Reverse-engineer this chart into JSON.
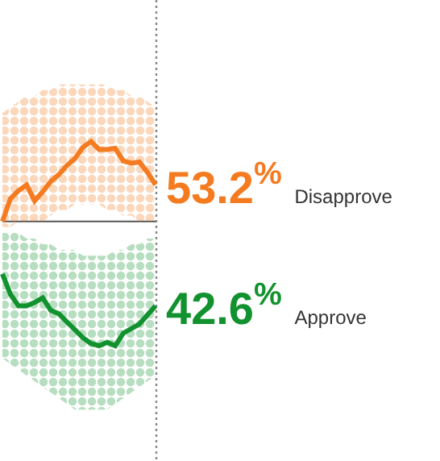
{
  "chart_data": {
    "type": "line",
    "ylim": [
      29.0,
      69.4
    ],
    "legend": false,
    "marker": "none",
    "line_style": "solid",
    "categories": [
      null,
      null,
      null,
      null,
      null,
      null,
      null,
      null,
      null,
      null,
      null,
      null,
      null,
      null,
      null,
      null,
      null,
      null,
      null,
      null
    ],
    "ref_lines": [
      {
        "axis": "y",
        "value": 50,
        "color": "#555555"
      }
    ],
    "series": [
      {
        "name": "Disapprove",
        "color": "#f47b20",
        "values": [
          50.0,
          52.0,
          52.7,
          53.2,
          51.8,
          52.6,
          53.5,
          54.1,
          54.9,
          55.5,
          56.5,
          57.0,
          56.3,
          56.3,
          56.4,
          55.3,
          55.1,
          55.2,
          54.3,
          53.2
        ],
        "lower": [
          49.5,
          49.5,
          50,
          50,
          50,
          50,
          50.5,
          51,
          51,
          51.5,
          51.5,
          51.5,
          51.5,
          51,
          51,
          50.5,
          50.5,
          50,
          50,
          50
        ],
        "upper": [
          59.5,
          60,
          60.5,
          61,
          61,
          61.5,
          61.5,
          62,
          62,
          62,
          62,
          62,
          62,
          62,
          61.5,
          61.5,
          61,
          61,
          60.5,
          60
        ],
        "value_labels": [
          null,
          null,
          null,
          null,
          null,
          null,
          null,
          null,
          null,
          null,
          null,
          null,
          null,
          null,
          null,
          null,
          null,
          null,
          null,
          "53.2$^{%}$"
        ]
      },
      {
        "name": "Approve",
        "color": "#12922f",
        "values": [
          45.4,
          43.6,
          42.6,
          42.6,
          42.9,
          43.3,
          42.2,
          41.9,
          41.2,
          40.5,
          39.8,
          39.3,
          39.1,
          39.4,
          39.1,
          40.2,
          40.6,
          41.0,
          41.8,
          42.6
        ],
        "lower": [
          38,
          37.5,
          37,
          36.5,
          36,
          35.5,
          35,
          34.5,
          34,
          33.5,
          33.5,
          33.5,
          33.5,
          33.5,
          34,
          34.5,
          35,
          35.5,
          36,
          36.5
        ],
        "upper": [
          49,
          49,
          49,
          48.5,
          48.5,
          48,
          48,
          47.5,
          47.5,
          47.5,
          47,
          47,
          47,
          47,
          47.5,
          47.5,
          48,
          48,
          48.5,
          48.5
        ],
        "value_labels": [
          null,
          null,
          null,
          null,
          null,
          null,
          null,
          null,
          null,
          null,
          null,
          null,
          null,
          null,
          null,
          null,
          null,
          null,
          null,
          "42.6$^{%}$"
        ]
      }
    ]
  }
}
